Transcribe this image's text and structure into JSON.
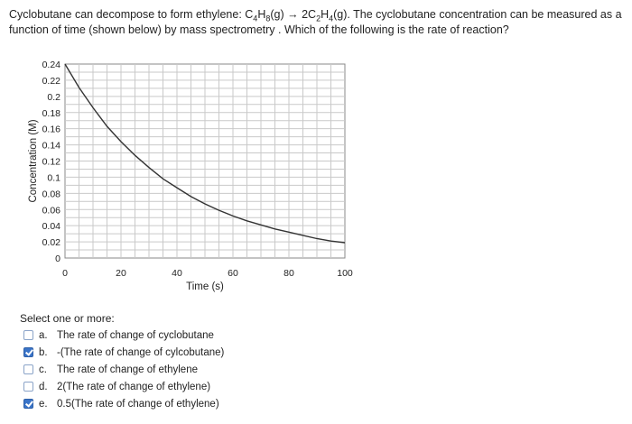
{
  "question": {
    "part1": "Cyclobutane can decompose to form ethylene: C",
    "sub1": "4",
    "part2": "H",
    "sub2": "8",
    "part3": "(g) → 2C",
    "sub3": "2",
    "part4": "H",
    "sub4": "4",
    "part5": "(g). The cyclobutane concentration can be measured as a function of time (shown below) by mass spectrometry . Which of the following is the rate of reaction?"
  },
  "chart_data": {
    "type": "line",
    "xlabel": "Time (s)",
    "ylabel": "Concentration (M)",
    "xlim": [
      0,
      100
    ],
    "ylim": [
      0,
      0.24
    ],
    "x_ticks": [
      "0",
      "20",
      "40",
      "60",
      "80",
      "100"
    ],
    "y_ticks": [
      "0",
      "0.02",
      "0.04",
      "0.06",
      "0.08",
      "0.1",
      "0.12",
      "0.14",
      "0.16",
      "0.18",
      "0.2",
      "0.22",
      "0.24"
    ],
    "grid": true,
    "series": [
      {
        "x": [
          0,
          5,
          10,
          15,
          20,
          25,
          30,
          35,
          40,
          45,
          50,
          55,
          60,
          65,
          70,
          75,
          80,
          85,
          90,
          95,
          100
        ],
        "y": [
          0.24,
          0.211,
          0.186,
          0.163,
          0.144,
          0.127,
          0.112,
          0.098,
          0.087,
          0.076,
          0.067,
          0.059,
          0.052,
          0.046,
          0.041,
          0.036,
          0.032,
          0.028,
          0.024,
          0.021,
          0.019
        ]
      }
    ]
  },
  "select_prompt": "Select one or more:",
  "options": [
    {
      "letter": "a.",
      "text": "The rate of change of cyclobutane",
      "checked": false
    },
    {
      "letter": "b.",
      "text": "-(The rate of change of cylcobutane)",
      "checked": true
    },
    {
      "letter": "c.",
      "text": "The rate of change of ethylene",
      "checked": false
    },
    {
      "letter": "d.",
      "text": "2(The rate of change of ethylene)",
      "checked": false
    },
    {
      "letter": "e.",
      "text": "0.5(The rate of change of ethylene)",
      "checked": true
    }
  ],
  "colors": {
    "checkbox_checked": "#3a74c8",
    "grid": "#c9c9c9",
    "line": "#333333"
  }
}
